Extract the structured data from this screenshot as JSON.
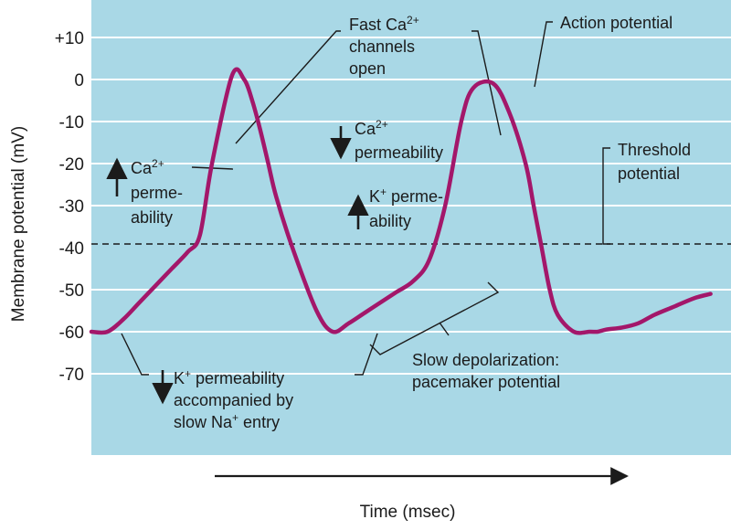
{
  "chart_data": {
    "type": "line",
    "title": "",
    "xlabel": "Time (msec)",
    "ylabel": "Membrane potential (mV)",
    "ylim": [
      -85,
      15
    ],
    "yticks": [
      {
        "value": 10,
        "label": "+10"
      },
      {
        "value": 0,
        "label": "0"
      },
      {
        "value": -10,
        "label": "-10"
      },
      {
        "value": -20,
        "label": "-20"
      },
      {
        "value": -30,
        "label": "-30"
      },
      {
        "value": -40,
        "label": "-40"
      },
      {
        "value": -50,
        "label": "-50"
      },
      {
        "value": -60,
        "label": "-60"
      },
      {
        "value": -70,
        "label": "-70"
      }
    ],
    "xticks_shown": false,
    "grid": true,
    "threshold_mv": -40,
    "colors": {
      "plot_background": "#a9d8e6",
      "gridline": "#ffffff",
      "trace": "#a3176a",
      "threshold_line": "#1b1b1b"
    },
    "series": [
      {
        "x": [
          0,
          4,
          8,
          12,
          16,
          20,
          24,
          27,
          30,
          35,
          38,
          40,
          42,
          44,
          46,
          50,
          56,
          60,
          64,
          68,
          72,
          76,
          80,
          84,
          88,
          92,
          95,
          100,
          104,
          108,
          110,
          112,
          114,
          116,
          120,
          124,
          126,
          128,
          132,
          136,
          140,
          145,
          150,
          154
        ],
        "y": [
          -60,
          -60,
          -57,
          -53,
          -49,
          -45,
          -41,
          -37,
          -20,
          1,
          0,
          -5,
          -12,
          -20,
          -28,
          -40,
          -55,
          -60,
          -58,
          -55.5,
          -53,
          -50.5,
          -48,
          -43,
          -30,
          -10,
          -2,
          -1,
          -8,
          -20,
          -30,
          -40,
          -50,
          -56,
          -60,
          -60,
          -60,
          -59.5,
          -59,
          -58,
          -56,
          -54,
          -52,
          -51
        ]
      }
    ],
    "annotations": [
      {
        "id": "fast-ca",
        "lines": [
          "Fast Ca2+",
          "channels",
          "open"
        ]
      },
      {
        "id": "action-potential",
        "lines": [
          "Action potential"
        ]
      },
      {
        "id": "threshold",
        "lines": [
          "Threshold",
          "potential"
        ]
      },
      {
        "id": "ca-down",
        "arrow": "down",
        "lines": [
          "Ca2+",
          "permeability"
        ]
      },
      {
        "id": "ca-up",
        "arrow": "up",
        "lines": [
          "Ca2+",
          "perme-",
          "ability"
        ]
      },
      {
        "id": "k-up",
        "arrow": "up",
        "lines": [
          "K+ perme-",
          "ability"
        ]
      },
      {
        "id": "k-down",
        "arrow": "down",
        "lines": [
          "K+ permeability",
          "accompanied by",
          "slow Na+ entry"
        ]
      },
      {
        "id": "slow-depol",
        "lines": [
          "Slow depolarization:",
          "pacemaker potential"
        ]
      }
    ]
  }
}
